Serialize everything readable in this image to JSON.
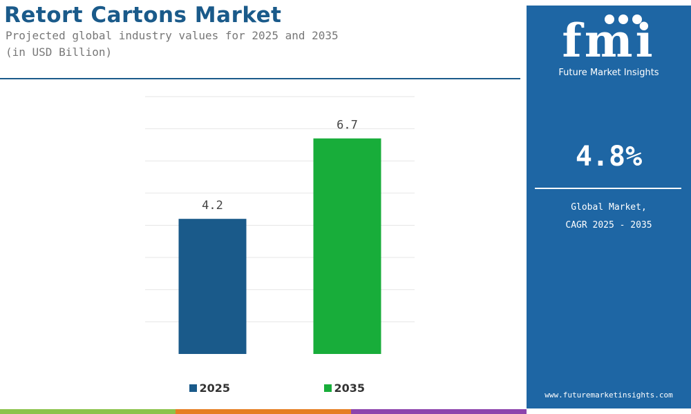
{
  "header": {
    "title": "Retort Cartons Market",
    "subtitle_line1": "Projected global industry values for 2025 and 2035",
    "subtitle_line2": "(in USD Billion)"
  },
  "chart_data": {
    "type": "bar",
    "categories": [
      "2025",
      "2035"
    ],
    "values": [
      4.2,
      6.7
    ],
    "data_labels": [
      "4.2",
      "6.7"
    ],
    "colors": [
      "#1a5a8a",
      "#18ad3a"
    ],
    "ylim": [
      0,
      8
    ],
    "grid": true,
    "legend_position": "bottom",
    "legend": [
      "2025",
      "2035"
    ]
  },
  "panel": {
    "logo_mark": "fmi",
    "logo_text": "Future Market Insights",
    "cagr_value": "4.8%",
    "cagr_label_line1": "Global Market,",
    "cagr_label_line2": "CAGR 2025 - 2035",
    "website": "www.futuremarketinsights.com",
    "background_color": "#1e66a4"
  }
}
